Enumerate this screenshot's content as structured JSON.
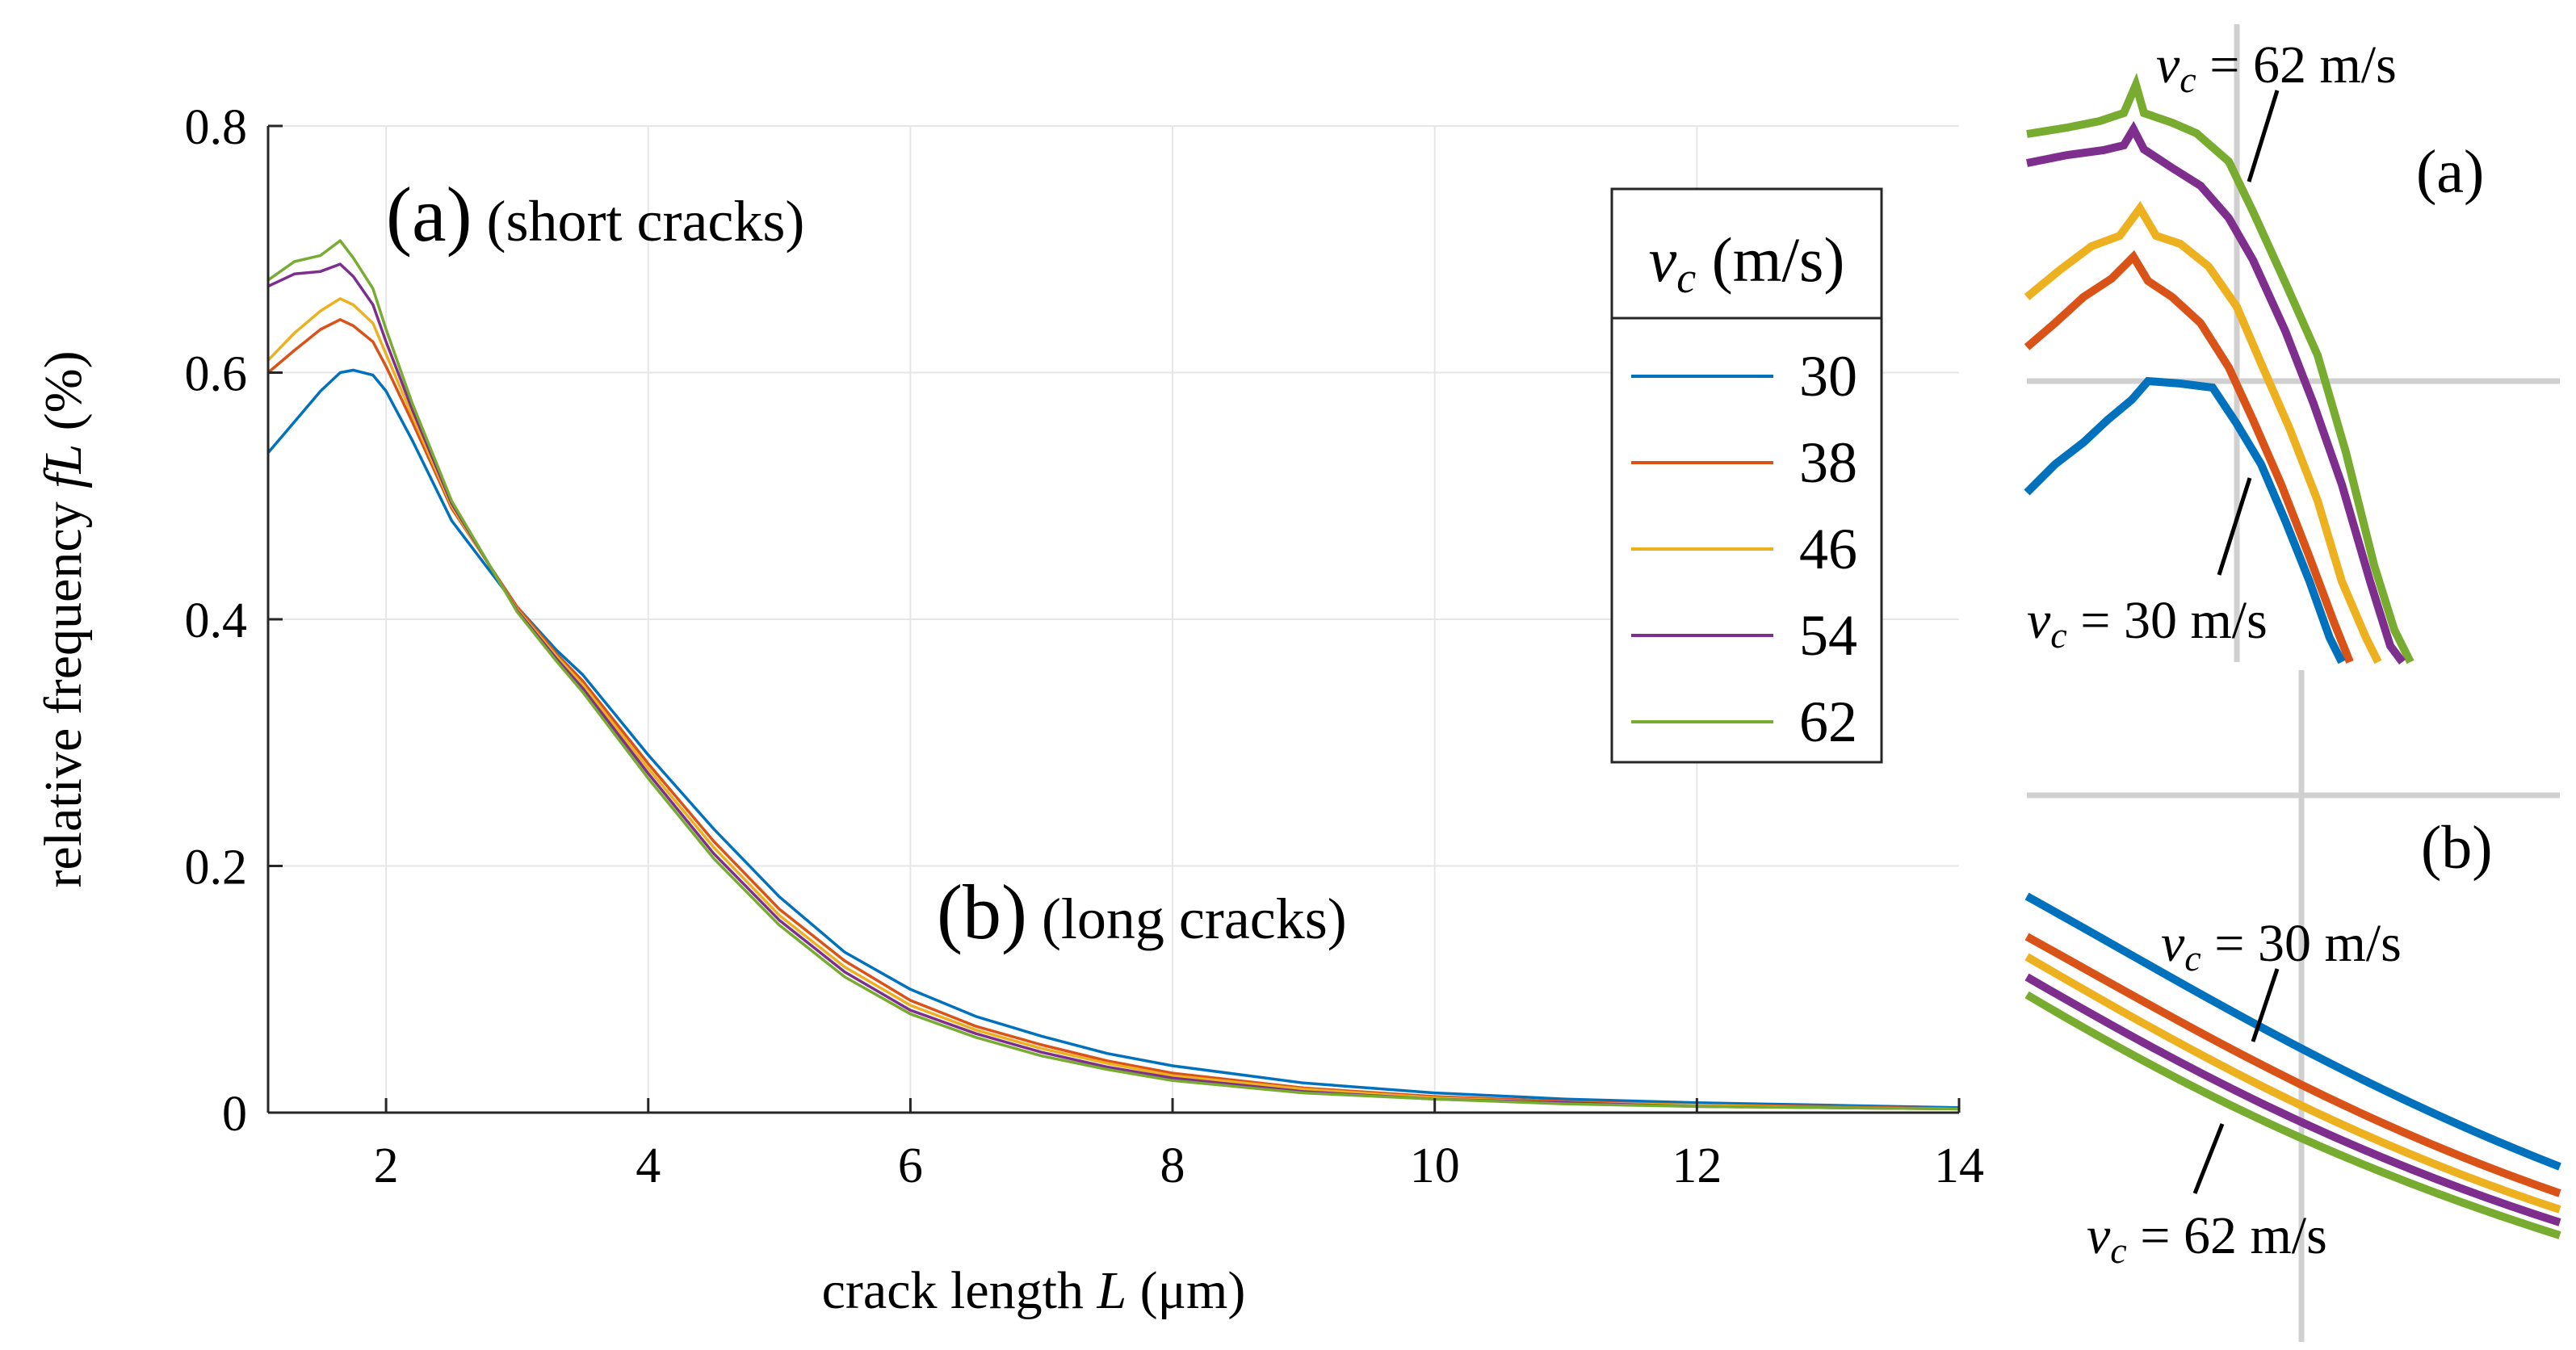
{
  "chart_data": {
    "type": "line",
    "xlabel_prefix": "crack length ",
    "xlabel_var": "L",
    "xlabel_unit": " (μm)",
    "ylabel_prefix": "relative frequency ",
    "ylabel_var": "fL",
    "ylabel_unit": " (%)",
    "xlim": [
      1.1,
      14
    ],
    "ylim": [
      0,
      0.8
    ],
    "xticks": [
      2,
      4,
      6,
      8,
      10,
      12,
      14
    ],
    "yticks": [
      0,
      0.2,
      0.4,
      0.6,
      0.8
    ],
    "ytick_labels": [
      "0",
      "0.2",
      "0.4",
      "0.6",
      "0.8"
    ],
    "grid": true,
    "legend": {
      "position": "top-right",
      "title_var": "v",
      "title_sub": "c",
      "title_unit": " (m/s)"
    },
    "annotation_a": "(a)",
    "annotation_a_note": "(short cracks)",
    "annotation_b": "(b)",
    "annotation_b_note": "(long cracks)",
    "x": [
      1.1,
      1.3,
      1.5,
      1.65,
      1.75,
      1.9,
      2.0,
      2.2,
      2.5,
      3.0,
      3.3,
      3.5,
      4.0,
      4.5,
      5.0,
      5.5,
      6.0,
      6.5,
      7.0,
      7.5,
      8.0,
      9.0,
      10.0,
      11.0,
      12.0,
      13.0,
      14.0
    ],
    "series": [
      {
        "name": "30",
        "color": "#0072BD",
        "values": [
          0.535,
          0.56,
          0.585,
          0.6,
          0.602,
          0.598,
          0.585,
          0.545,
          0.48,
          0.41,
          0.375,
          0.355,
          0.29,
          0.23,
          0.175,
          0.13,
          0.1,
          0.078,
          0.062,
          0.048,
          0.038,
          0.024,
          0.016,
          0.011,
          0.008,
          0.006,
          0.004
        ]
      },
      {
        "name": "38",
        "color": "#D95319",
        "values": [
          0.6,
          0.618,
          0.635,
          0.643,
          0.638,
          0.625,
          0.605,
          0.56,
          0.49,
          0.41,
          0.372,
          0.35,
          0.283,
          0.22,
          0.165,
          0.123,
          0.091,
          0.07,
          0.055,
          0.042,
          0.032,
          0.02,
          0.013,
          0.009,
          0.006,
          0.005,
          0.003
        ]
      },
      {
        "name": "46",
        "color": "#EDB120",
        "values": [
          0.61,
          0.632,
          0.65,
          0.66,
          0.655,
          0.64,
          0.615,
          0.565,
          0.492,
          0.408,
          0.37,
          0.347,
          0.279,
          0.215,
          0.16,
          0.118,
          0.087,
          0.067,
          0.052,
          0.04,
          0.03,
          0.019,
          0.012,
          0.008,
          0.006,
          0.004,
          0.003
        ]
      },
      {
        "name": "54",
        "color": "#7E2F8E",
        "values": [
          0.67,
          0.68,
          0.682,
          0.688,
          0.678,
          0.655,
          0.625,
          0.57,
          0.494,
          0.407,
          0.368,
          0.344,
          0.275,
          0.21,
          0.156,
          0.114,
          0.083,
          0.064,
          0.049,
          0.037,
          0.028,
          0.017,
          0.011,
          0.008,
          0.005,
          0.004,
          0.003
        ]
      },
      {
        "name": "62",
        "color": "#77AC30",
        "values": [
          0.675,
          0.69,
          0.695,
          0.707,
          0.693,
          0.668,
          0.635,
          0.575,
          0.496,
          0.406,
          0.366,
          0.341,
          0.271,
          0.206,
          0.152,
          0.11,
          0.08,
          0.061,
          0.046,
          0.035,
          0.026,
          0.016,
          0.011,
          0.007,
          0.005,
          0.004,
          0.003
        ]
      }
    ],
    "inset_a": {
      "label": "(a)",
      "top_var": "v",
      "top_sub": "c",
      "top_text": " = 62 m/s",
      "bottom_var": "v",
      "bottom_sub": "c",
      "bottom_text": " = 30 m/s"
    },
    "inset_b": {
      "label": "(b)",
      "top_var": "v",
      "top_sub": "c",
      "top_text": " = 30 m/s",
      "bottom_var": "v",
      "bottom_sub": "c",
      "bottom_text": " = 62 m/s"
    }
  }
}
